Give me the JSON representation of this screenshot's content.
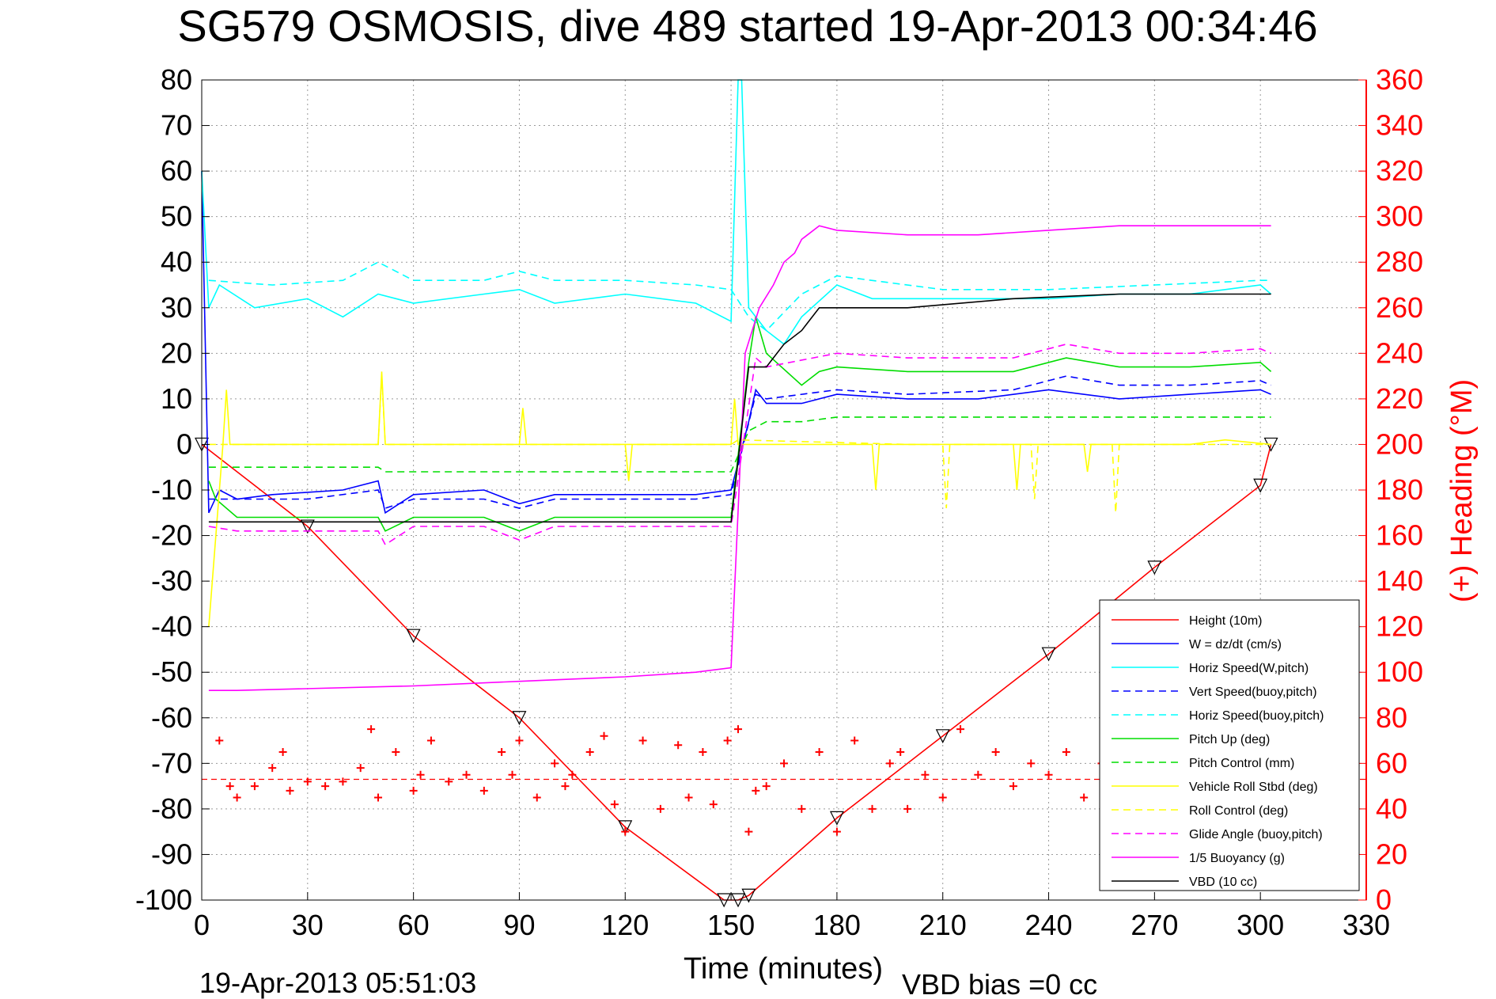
{
  "chart_data": {
    "type": "line",
    "title": "SG579 OSMOSIS, dive 489 started 19-Apr-2013 00:34:46",
    "xlabel": "Time (minutes)",
    "ylabel_right": "(+) Heading (°M)",
    "x_range": [
      0,
      330
    ],
    "y_left_range": [
      -100,
      80
    ],
    "y_right_range": [
      0,
      360
    ],
    "x_ticks": [
      "0",
      "30",
      "60",
      "90",
      "120",
      "150",
      "180",
      "210",
      "240",
      "270",
      "300",
      "330"
    ],
    "y_left_ticks": [
      "80",
      "70",
      "60",
      "50",
      "40",
      "30",
      "20",
      "10",
      "0",
      "-10",
      "-20",
      "-30",
      "-40",
      "-50",
      "-60",
      "-70",
      "-80",
      "-90",
      "-100"
    ],
    "y_right_ticks": [
      "360",
      "340",
      "320",
      "300",
      "280",
      "260",
      "240",
      "220",
      "200",
      "180",
      "160",
      "140",
      "120",
      "100",
      "80",
      "60",
      "40",
      "20",
      "0"
    ],
    "grid": true,
    "legend_position": "bottom-right",
    "colors": {
      "height": "#ff0000",
      "w": "#0000ff",
      "horiz_speed": "#00ffff",
      "pitch": "#00dd00",
      "roll": "#ffff00",
      "glide": "#ff00ff",
      "buoyancy": "#ff00ff",
      "vbd": "#000000",
      "heading": "#ff0000",
      "right_axis": "#ff0000"
    },
    "series": [
      {
        "name": "Height (10m)",
        "style": "solid",
        "color": "#ff0000",
        "x": [
          0,
          30,
          60,
          90,
          120,
          148,
          152,
          155,
          180,
          210,
          240,
          270,
          300,
          303
        ],
        "y": [
          0,
          -18,
          -42,
          -60,
          -84,
          -100,
          -100,
          -99,
          -82,
          -64,
          -46,
          -27,
          -9,
          0
        ]
      },
      {
        "name": "W = dz/dt (cm/s)",
        "style": "solid",
        "color": "#0000ff",
        "x": [
          0,
          2,
          5,
          10,
          20,
          40,
          50,
          52,
          60,
          80,
          90,
          100,
          120,
          140,
          150,
          155,
          157,
          160,
          170,
          180,
          200,
          220,
          240,
          260,
          280,
          300,
          303
        ],
        "y": [
          60,
          -15,
          -10,
          -12,
          -11,
          -10,
          -8,
          -15,
          -11,
          -10,
          -13,
          -11,
          -11,
          -11,
          -10,
          5,
          12,
          9,
          9,
          11,
          10,
          10,
          12,
          10,
          11,
          12,
          11
        ]
      },
      {
        "name": "Horiz Speed(W,pitch)",
        "style": "solid",
        "color": "#00ffff",
        "x": [
          0,
          2,
          5,
          15,
          30,
          40,
          50,
          60,
          80,
          90,
          100,
          120,
          140,
          150,
          152,
          153,
          155,
          160,
          165,
          170,
          180,
          190,
          210,
          240,
          260,
          280,
          290,
          300,
          303
        ],
        "y": [
          60,
          30,
          35,
          30,
          32,
          28,
          33,
          31,
          33,
          34,
          31,
          33,
          31,
          27,
          80,
          80,
          30,
          25,
          22,
          28,
          35,
          32,
          32,
          32,
          33,
          33,
          34,
          35,
          33
        ]
      },
      {
        "name": "Vert Speed(buoy,pitch)",
        "style": "dash",
        "color": "#0000ff",
        "x": [
          2,
          10,
          30,
          50,
          52,
          60,
          80,
          90,
          100,
          120,
          140,
          150,
          157,
          160,
          180,
          200,
          230,
          245,
          260,
          280,
          300,
          303
        ],
        "y": [
          -12,
          -12,
          -12,
          -10,
          -14,
          -12,
          -12,
          -14,
          -12,
          -12,
          -12,
          -11,
          11,
          10,
          12,
          11,
          12,
          15,
          13,
          13,
          14,
          13
        ]
      },
      {
        "name": "Horiz Speed(buoy,pitch)",
        "style": "dash",
        "color": "#00ffff",
        "x": [
          2,
          20,
          40,
          50,
          60,
          80,
          90,
          100,
          120,
          140,
          150,
          155,
          160,
          170,
          180,
          210,
          240,
          270,
          300,
          303
        ],
        "y": [
          36,
          35,
          36,
          40,
          36,
          36,
          38,
          36,
          36,
          35,
          34,
          28,
          25,
          33,
          37,
          34,
          34,
          35,
          36,
          36
        ]
      },
      {
        "name": "Pitch Up (deg)",
        "style": "solid",
        "color": "#00dd00",
        "x": [
          2,
          4,
          10,
          30,
          50,
          52,
          60,
          80,
          90,
          100,
          120,
          140,
          150,
          155,
          157,
          160,
          170,
          175,
          180,
          200,
          230,
          245,
          260,
          280,
          300,
          303
        ],
        "y": [
          -8,
          -12,
          -16,
          -16,
          -16,
          -19,
          -16,
          -16,
          -19,
          -16,
          -16,
          -16,
          -16,
          18,
          28,
          20,
          13,
          16,
          17,
          16,
          16,
          19,
          17,
          17,
          18,
          16
        ]
      },
      {
        "name": "Pitch Control (mm)",
        "style": "dash",
        "color": "#00dd00",
        "x": [
          2,
          10,
          50,
          52,
          120,
          150,
          155,
          160,
          170,
          180,
          210,
          240,
          270,
          300,
          303
        ],
        "y": [
          -5,
          -5,
          -5,
          -6,
          -6,
          -6,
          3,
          5,
          5,
          6,
          6,
          6,
          6,
          6,
          6
        ]
      },
      {
        "name": "Vehicle Roll Stbd (deg)",
        "style": "solid",
        "color": "#ffff00",
        "x": [
          2,
          6,
          7,
          8,
          10,
          50,
          51,
          52,
          90,
          91,
          92,
          120,
          121,
          122,
          150,
          151,
          152,
          180,
          190,
          191,
          192,
          230,
          231,
          232,
          250,
          251,
          252,
          280,
          290,
          303
        ],
        "y": [
          -40,
          0,
          12,
          0,
          0,
          0,
          16,
          0,
          0,
          8,
          0,
          0,
          -8,
          0,
          0,
          10,
          0,
          0,
          0,
          -10,
          0,
          0,
          -10,
          0,
          0,
          -6,
          0,
          0,
          1,
          0
        ]
      },
      {
        "name": "Roll Control (deg)",
        "style": "dash",
        "color": "#ffff00",
        "x": [
          2,
          50,
          51,
          52,
          150,
          152,
          200,
          210,
          211,
          212,
          235,
          236,
          237,
          258,
          259,
          260,
          290,
          303
        ],
        "y": [
          0,
          0,
          15,
          0,
          0,
          1,
          0,
          0,
          -14,
          0,
          0,
          -12,
          0,
          0,
          -15,
          0,
          0,
          0
        ]
      },
      {
        "name": "Glide Angle (buoy,pitch)",
        "style": "dash",
        "color": "#ff00ff",
        "x": [
          2,
          10,
          50,
          52,
          60,
          80,
          90,
          100,
          120,
          150,
          157,
          160,
          180,
          200,
          230,
          245,
          260,
          280,
          300,
          303
        ],
        "y": [
          -18,
          -19,
          -19,
          -22,
          -18,
          -18,
          -21,
          -18,
          -18,
          -18,
          19,
          17,
          20,
          19,
          19,
          22,
          20,
          20,
          21,
          20
        ]
      },
      {
        "name": "1/5 Buoyancy (g)",
        "style": "solid",
        "color": "#ff00ff",
        "x": [
          2,
          3,
          10,
          60,
          90,
          120,
          140,
          150,
          154,
          158,
          162,
          165,
          168,
          170,
          175,
          180,
          200,
          220,
          240,
          260,
          280,
          300,
          303
        ],
        "y": [
          -54,
          -54,
          -54,
          -53,
          -52,
          -51,
          -50,
          -49,
          20,
          30,
          35,
          40,
          42,
          45,
          48,
          47,
          46,
          46,
          47,
          48,
          48,
          48,
          48
        ]
      },
      {
        "name": "VBD (10 cc)",
        "style": "solid",
        "color": "#000000",
        "x": [
          2,
          3,
          20,
          60,
          100,
          150,
          155,
          160,
          165,
          170,
          175,
          180,
          200,
          230,
          260,
          280,
          300,
          303
        ],
        "y": [
          -17,
          -17,
          -17,
          -17,
          -17,
          -17,
          17,
          17,
          22,
          25,
          30,
          30,
          30,
          32,
          33,
          33,
          33,
          33
        ]
      },
      {
        "name": "Heading",
        "axis": "right",
        "style": "markers-plus",
        "color": "#ff0000",
        "x": [
          5,
          8,
          10,
          15,
          20,
          23,
          25,
          30,
          35,
          40,
          45,
          48,
          50,
          55,
          60,
          62,
          65,
          70,
          75,
          80,
          85,
          88,
          90,
          95,
          100,
          103,
          105,
          110,
          114,
          117,
          120,
          125,
          130,
          135,
          138,
          142,
          145,
          149,
          152,
          155,
          157,
          160,
          165,
          170,
          175,
          180,
          185,
          190,
          195,
          198,
          200,
          205,
          210,
          215,
          220,
          225,
          230,
          235,
          240,
          245,
          250,
          255,
          258
        ],
        "y": [
          70,
          50,
          45,
          50,
          58,
          65,
          48,
          52,
          50,
          52,
          58,
          75,
          45,
          65,
          48,
          55,
          70,
          52,
          55,
          48,
          65,
          55,
          70,
          45,
          60,
          50,
          55,
          65,
          72,
          42,
          30,
          70,
          40,
          68,
          45,
          65,
          42,
          70,
          75,
          30,
          48,
          50,
          60,
          40,
          65,
          30,
          70,
          40,
          60,
          65,
          40,
          55,
          45,
          75,
          55,
          65,
          50,
          60,
          55,
          65,
          45,
          60,
          55
        ]
      }
    ],
    "reference_lines": [
      {
        "axis": "right",
        "y": 53,
        "style": "dash",
        "color": "#ff0000"
      }
    ],
    "annotations": {
      "footer_left": "19-Apr-2013 05:51:03",
      "footer_right": "VBD bias =0 cc"
    }
  }
}
